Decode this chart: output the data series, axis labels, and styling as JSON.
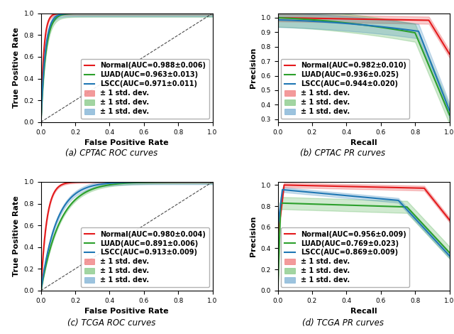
{
  "panels": [
    {
      "title": "(a) CPTAC ROC curves",
      "xlabel": "False Positive Rate",
      "ylabel": "True Positive Rate",
      "xlim": [
        0.0,
        1.0
      ],
      "ylim": [
        0.0,
        1.0
      ],
      "type": "roc",
      "legend_loc": "lower right",
      "curves": [
        {
          "label": "Normal(AUC=0.988±0.006)",
          "color": "#e41a1c",
          "std": 0.006,
          "shape": "cptac_roc_normal"
        },
        {
          "label": "LUAD(AUC=0.963±0.013)",
          "color": "#2ca02c",
          "std": 0.013,
          "shape": "cptac_roc_luad"
        },
        {
          "label": "LSCC(AUC=0.971±0.011)",
          "color": "#1f77b4",
          "std": 0.011,
          "shape": "cptac_roc_lscc"
        }
      ]
    },
    {
      "title": "(b) CPTAC PR curves",
      "xlabel": "Recall",
      "ylabel": "Precision",
      "xlim": [
        0.0,
        1.0
      ],
      "ylim": [
        0.28,
        1.03
      ],
      "type": "pr",
      "legend_loc": "lower left",
      "curves": [
        {
          "label": "Normal(AUC=0.982±0.010)",
          "color": "#e41a1c",
          "std": 0.01,
          "shape": "cptac_pr_normal"
        },
        {
          "label": "LUAD(AUC=0.936±0.025)",
          "color": "#2ca02c",
          "std": 0.025,
          "shape": "cptac_pr_luad"
        },
        {
          "label": "LSCC(AUC=0.944±0.020)",
          "color": "#1f77b4",
          "std": 0.02,
          "shape": "cptac_pr_lscc"
        }
      ]
    },
    {
      "title": "(c) TCGA ROC curves",
      "xlabel": "False Positive Rate",
      "ylabel": "True Positive Rate",
      "xlim": [
        0.0,
        1.0
      ],
      "ylim": [
        0.0,
        1.0
      ],
      "type": "roc",
      "legend_loc": "lower right",
      "curves": [
        {
          "label": "Normal(AUC=0.980±0.004)",
          "color": "#e41a1c",
          "std": 0.004,
          "shape": "tcga_roc_normal"
        },
        {
          "label": "LUAD(AUC=0.891±0.006)",
          "color": "#2ca02c",
          "std": 0.006,
          "shape": "tcga_roc_luad"
        },
        {
          "label": "LSCC(AUC=0.913±0.009)",
          "color": "#1f77b4",
          "std": 0.009,
          "shape": "tcga_roc_lscc"
        }
      ]
    },
    {
      "title": "(d) TCGA PR curves",
      "xlabel": "Recall",
      "ylabel": "Precision",
      "xlim": [
        0.0,
        1.0
      ],
      "ylim": [
        0.0,
        1.03
      ],
      "type": "pr",
      "legend_loc": "lower left",
      "curves": [
        {
          "label": "Normal(AUC=0.956±0.009)",
          "color": "#e41a1c",
          "std": 0.009,
          "shape": "tcga_pr_normal"
        },
        {
          "label": "LUAD(AUC=0.769±0.023)",
          "color": "#2ca02c",
          "std": 0.023,
          "shape": "tcga_pr_luad"
        },
        {
          "label": "LSCC(AUC=0.869±0.009)",
          "color": "#1f77b4",
          "std": 0.009,
          "shape": "tcga_pr_lscc"
        }
      ]
    }
  ],
  "band_alpha": 0.22,
  "legend_fontsize": 7.0,
  "axis_fontsize": 8,
  "caption_fontsize": 8.5
}
